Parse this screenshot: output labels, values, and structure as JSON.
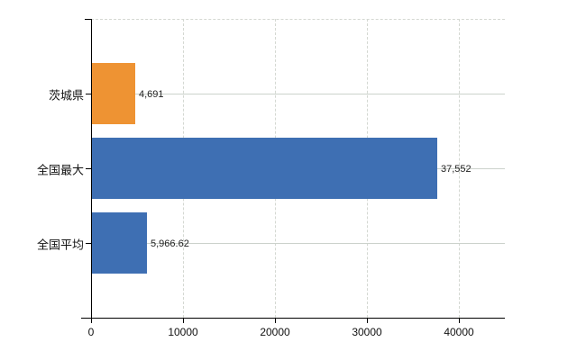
{
  "chart_data": {
    "type": "bar",
    "orientation": "horizontal",
    "title": "",
    "xlabel": "",
    "ylabel": "",
    "categories": [
      "茨城県",
      "全国最大",
      "全国平均"
    ],
    "values": [
      4691,
      37552,
      5966.62
    ],
    "value_labels": [
      "4,691",
      "37,552",
      "5,966.62"
    ],
    "bar_colors": [
      "#EE9333",
      "#3E6FB3",
      "#3E6FB3"
    ],
    "x_ticks": [
      0,
      10000,
      20000,
      30000,
      40000
    ],
    "x_tick_labels": [
      "0",
      "10000",
      "20000",
      "30000",
      "40000"
    ],
    "xlim": [
      0,
      45000
    ],
    "grid": true,
    "legend": "none"
  },
  "colors": {
    "background": "#ffffff",
    "axis": "#000000",
    "grid": "#d4d8d2",
    "row_line": "#ccd2cc",
    "tick_text": "#111111",
    "value_text": "#222222"
  }
}
